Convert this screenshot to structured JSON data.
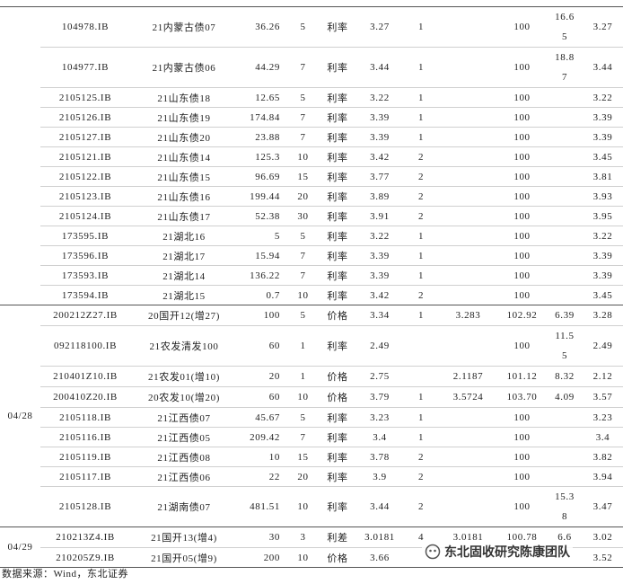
{
  "sections": [
    {
      "rows": [
        [
          "104978.IB",
          "21内蒙古债07",
          "36.26",
          "5",
          "利率",
          "3.27",
          "1",
          null,
          "100",
          "16.65",
          "3.27"
        ],
        [
          "104977.IB",
          "21内蒙古债06",
          "44.29",
          "7",
          "利率",
          "3.44",
          "1",
          null,
          "100",
          "18.87",
          "3.44"
        ],
        [
          "2105125.IB",
          "21山东债18",
          "12.65",
          "5",
          "利率",
          "3.22",
          "1",
          null,
          "100",
          null,
          "3.22"
        ],
        [
          "2105126.IB",
          "21山东债19",
          "174.84",
          "7",
          "利率",
          "3.39",
          "1",
          null,
          "100",
          null,
          "3.39"
        ],
        [
          "2105127.IB",
          "21山东债20",
          "23.88",
          "7",
          "利率",
          "3.39",
          "1",
          null,
          "100",
          null,
          "3.39"
        ],
        [
          "2105121.IB",
          "21山东债14",
          "125.3",
          "10",
          "利率",
          "3.42",
          "2",
          null,
          "100",
          null,
          "3.45"
        ],
        [
          "2105122.IB",
          "21山东债15",
          "96.69",
          "15",
          "利率",
          "3.77",
          "2",
          null,
          "100",
          null,
          "3.81"
        ],
        [
          "2105123.IB",
          "21山东债16",
          "199.44",
          "20",
          "利率",
          "3.89",
          "2",
          null,
          "100",
          null,
          "3.93"
        ],
        [
          "2105124.IB",
          "21山东债17",
          "52.38",
          "30",
          "利率",
          "3.91",
          "2",
          null,
          "100",
          null,
          "3.95"
        ],
        [
          "173595.IB",
          "21湖北16",
          "5",
          "5",
          "利率",
          "3.22",
          "1",
          null,
          "100",
          null,
          "3.22"
        ],
        [
          "173596.IB",
          "21湖北17",
          "15.94",
          "7",
          "利率",
          "3.39",
          "1",
          null,
          "100",
          null,
          "3.39"
        ],
        [
          "173593.IB",
          "21湖北14",
          "136.22",
          "7",
          "利率",
          "3.39",
          "1",
          null,
          "100",
          null,
          "3.39"
        ],
        [
          "173594.IB",
          "21湖北15",
          "0.7",
          "10",
          "利率",
          "3.42",
          "2",
          null,
          "100",
          null,
          "3.45"
        ]
      ]
    },
    {
      "date": "04/28",
      "rows": [
        [
          "200212Z27.IB",
          "20国开12(增27)",
          "100",
          "5",
          "价格",
          "3.34",
          "1",
          "3.283",
          "102.92",
          "6.39",
          "3.28"
        ],
        [
          "092118100.IB",
          "21农发清发100",
          "60",
          "1",
          "利率",
          "2.49",
          null,
          null,
          "100",
          "11.55",
          "2.49"
        ],
        [
          "210401Z10.IB",
          "21农发01(增10)",
          "20",
          "1",
          "价格",
          "2.75",
          null,
          "2.1187",
          "101.12",
          "8.32",
          "2.12"
        ],
        [
          "200410Z20.IB",
          "20农发10(增20)",
          "60",
          "10",
          "价格",
          "3.79",
          "1",
          "3.5724",
          "103.70",
          "4.09",
          "3.57"
        ],
        [
          "2105118.IB",
          "21江西债07",
          "45.67",
          "5",
          "利率",
          "3.23",
          "1",
          null,
          "100",
          null,
          "3.23"
        ],
        [
          "2105116.IB",
          "21江西债05",
          "209.42",
          "7",
          "利率",
          "3.4",
          "1",
          null,
          "100",
          null,
          "3.4"
        ],
        [
          "2105119.IB",
          "21江西债08",
          "10",
          "15",
          "利率",
          "3.78",
          "2",
          null,
          "100",
          null,
          "3.82"
        ],
        [
          "2105117.IB",
          "21江西债06",
          "22",
          "20",
          "利率",
          "3.9",
          "2",
          null,
          "100",
          null,
          "3.94"
        ],
        [
          "2105128.IB",
          "21湖南债07",
          "481.51",
          "10",
          "利率",
          "3.44",
          "2",
          null,
          "100",
          "15.38",
          "3.47"
        ]
      ]
    },
    {
      "date": "04/29",
      "rows": [
        [
          "210213Z4.IB",
          "21国开13(增4)",
          "30",
          "3",
          "利差",
          "3.0181",
          "4",
          "3.0181",
          "100.78",
          "6.6",
          "3.02"
        ],
        [
          "210205Z9.IB",
          "21国开05(增9)",
          "200",
          "10",
          "价格",
          "3.66",
          null,
          null,
          null,
          null,
          "3.52"
        ]
      ]
    }
  ],
  "source": "数据来源：Wind，东北证券",
  "watermark": "东北固收研究陈康团队"
}
